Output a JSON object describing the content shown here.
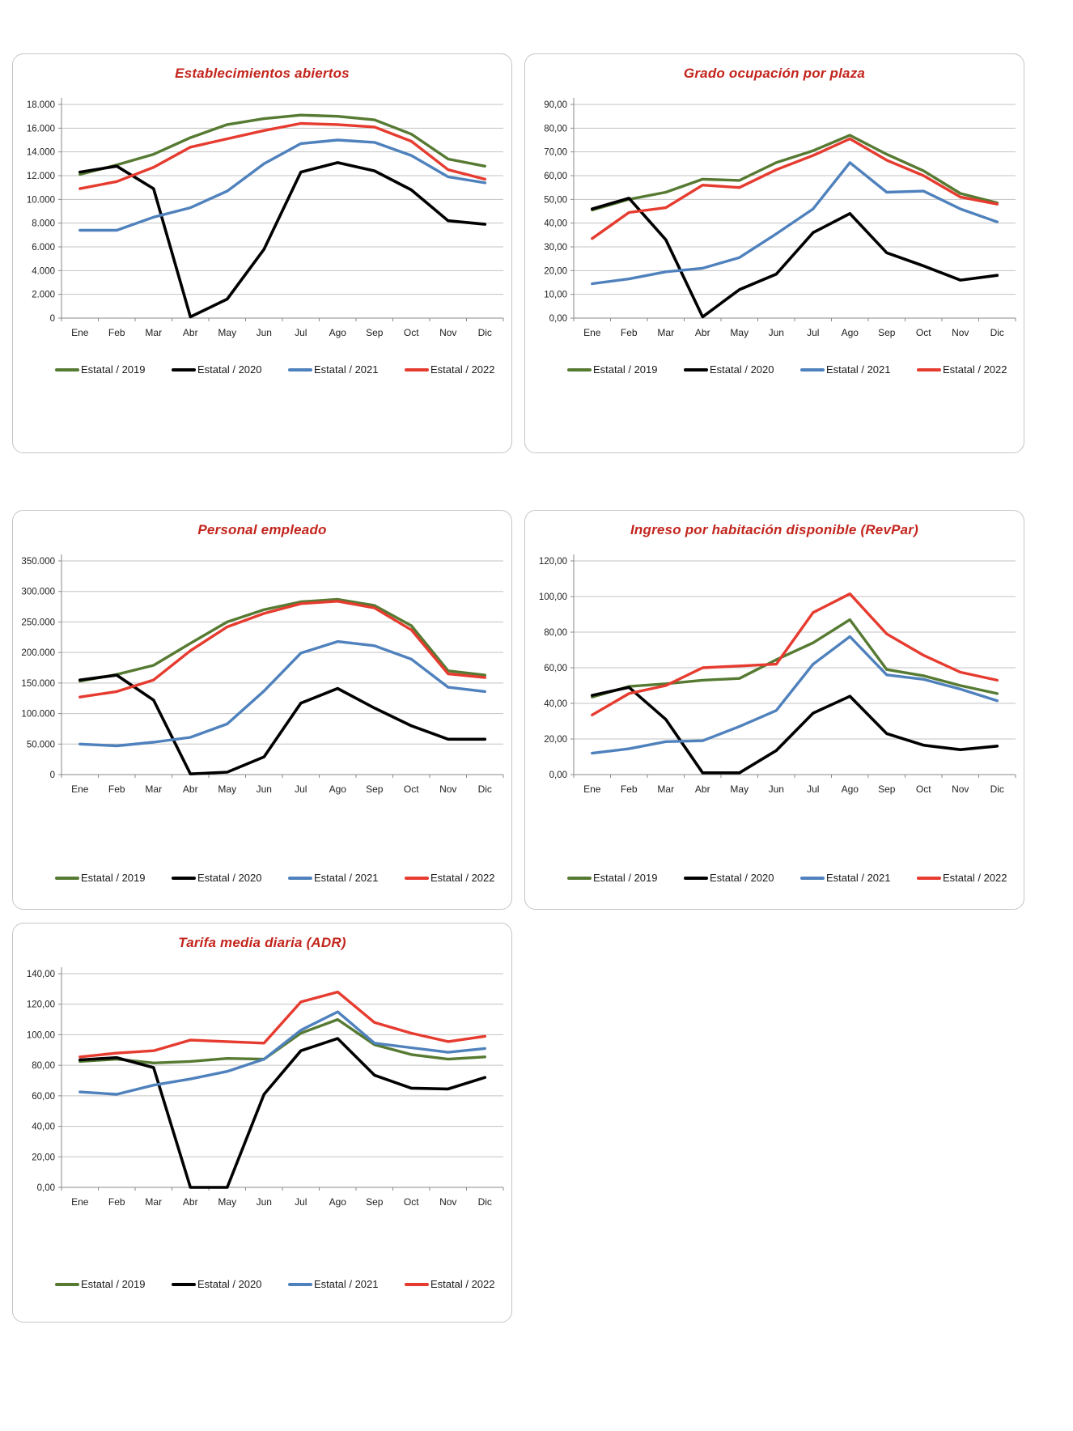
{
  "palette": {
    "title_red": "#c3251d",
    "gridline": "#c3c3c3",
    "axis_line": "#8a8a8a",
    "tick_text": "#1f1f1f",
    "panel_border": "#c6c6c6",
    "series_2019_green": "#567a32",
    "series_2020_black": "#000000",
    "series_2021_blue": "#4f81bd",
    "series_2022_red": "#e63b2f"
  },
  "chart_data": [
    {
      "type": "line",
      "title": "Establecimientos abiertos",
      "ylim": [
        0,
        18000
      ],
      "y_step": 2000,
      "grid": true,
      "legend_position": "bottom",
      "y_ticks": [
        "18.000",
        "16.000",
        "14.000",
        "12.000",
        "10.000",
        "8.000",
        "6.000",
        "4.000",
        "2.000",
        "0"
      ],
      "categories": [
        "Ene",
        "Feb",
        "Mar",
        "Abr",
        "May",
        "Jun",
        "Jul",
        "Ago",
        "Sep",
        "Oct",
        "Nov",
        "Dic"
      ],
      "series": [
        {
          "name": "Estatal / 2019",
          "color_key": "series_2019_green",
          "values": [
            12100,
            12900,
            13800,
            15200,
            16300,
            16800,
            17100,
            17000,
            16700,
            15500,
            13400,
            12800
          ]
        },
        {
          "name": "Estatal / 2020",
          "color_key": "series_2020_black",
          "values": [
            12300,
            12800,
            10900,
            100,
            1600,
            5800,
            12300,
            13100,
            12400,
            10800,
            8200,
            7900
          ]
        },
        {
          "name": "Estatal / 2021",
          "color_key": "series_2021_blue",
          "values": [
            7400,
            7400,
            8500,
            9300,
            10700,
            13000,
            14700,
            15000,
            14800,
            13700,
            11900,
            11400
          ]
        },
        {
          "name": "Estatal / 2022",
          "color_key": "series_2022_red",
          "values": [
            10900,
            11500,
            12700,
            14400,
            15100,
            15800,
            16400,
            16300,
            16100,
            14900,
            12500,
            11700
          ]
        }
      ]
    },
    {
      "type": "line",
      "title": "Grado ocupación por plaza",
      "ylim": [
        0,
        90
      ],
      "y_step": 10,
      "grid": true,
      "legend_position": "bottom",
      "y_ticks": [
        "90,00",
        "80,00",
        "70,00",
        "60,00",
        "50,00",
        "40,00",
        "30,00",
        "20,00",
        "10,00",
        "0,00"
      ],
      "categories": [
        "Ene",
        "Feb",
        "Mar",
        "Abr",
        "May",
        "Jun",
        "Jul",
        "Ago",
        "Sep",
        "Oct",
        "Nov",
        "Dic"
      ],
      "series": [
        {
          "name": "Estatal / 2019",
          "color_key": "series_2019_green",
          "values": [
            45.5,
            50,
            53,
            58.5,
            58,
            65.5,
            70.5,
            77,
            69,
            62,
            52.5,
            48.5
          ]
        },
        {
          "name": "Estatal / 2020",
          "color_key": "series_2020_black",
          "values": [
            46,
            50.5,
            33,
            0.5,
            12,
            18.5,
            36,
            44,
            27.5,
            22,
            16,
            18
          ]
        },
        {
          "name": "Estatal / 2021",
          "color_key": "series_2021_blue",
          "values": [
            14.5,
            16.5,
            19.5,
            21,
            25.5,
            35.5,
            46,
            65.5,
            53,
            53.5,
            46,
            40.5
          ]
        },
        {
          "name": "Estatal / 2022",
          "color_key": "series_2022_red",
          "values": [
            33.5,
            44.5,
            46.5,
            56,
            55,
            62.5,
            68.5,
            75.5,
            66.5,
            60,
            51,
            48
          ]
        }
      ]
    },
    {
      "type": "line",
      "title": "Personal empleado",
      "ylim": [
        0,
        350000
      ],
      "y_step": 50000,
      "grid": true,
      "legend_position": "bottom",
      "y_ticks": [
        "350.000",
        "300.000",
        "250.000",
        "200.000",
        "150.000",
        "100.000",
        "50.000",
        "0"
      ],
      "categories": [
        "Ene",
        "Feb",
        "Mar",
        "Abr",
        "May",
        "Jun",
        "Jul",
        "Ago",
        "Sep",
        "Oct",
        "Nov",
        "Dic"
      ],
      "series": [
        {
          "name": "Estatal / 2019",
          "color_key": "series_2019_green",
          "values": [
            153000,
            164000,
            179000,
            215000,
            250000,
            270000,
            283000,
            287000,
            277000,
            244000,
            170000,
            163000
          ]
        },
        {
          "name": "Estatal / 2020",
          "color_key": "series_2020_black",
          "values": [
            155000,
            163000,
            122000,
            1000,
            4000,
            29000,
            117000,
            141000,
            109000,
            80000,
            58000,
            58000
          ]
        },
        {
          "name": "Estatal / 2021",
          "color_key": "series_2021_blue",
          "values": [
            50000,
            47000,
            53000,
            61000,
            83000,
            137000,
            199000,
            218000,
            211000,
            189000,
            143000,
            136000
          ]
        },
        {
          "name": "Estatal / 2022",
          "color_key": "series_2022_red",
          "values": [
            127000,
            136000,
            155000,
            203000,
            242000,
            264000,
            280000,
            284000,
            273000,
            237000,
            165000,
            159000
          ]
        }
      ]
    },
    {
      "type": "line",
      "title": "Ingreso por habitación disponible (RevPar)",
      "ylim": [
        0,
        120
      ],
      "y_step": 20,
      "grid": true,
      "legend_position": "bottom",
      "y_ticks": [
        "120,00",
        "100,00",
        "80,00",
        "60,00",
        "40,00",
        "20,00",
        "0,00"
      ],
      "categories": [
        "Ene",
        "Feb",
        "Mar",
        "Abr",
        "May",
        "Jun",
        "Jul",
        "Ago",
        "Sep",
        "Oct",
        "Nov",
        "Dic"
      ],
      "series": [
        {
          "name": "Estatal / 2019",
          "color_key": "series_2019_green",
          "values": [
            43.5,
            49.5,
            51,
            53,
            54,
            64.5,
            74,
            87,
            59,
            55.5,
            50,
            45.5
          ]
        },
        {
          "name": "Estatal / 2020",
          "color_key": "series_2020_black",
          "values": [
            44.5,
            49,
            31,
            1,
            1,
            13.5,
            34.5,
            44,
            23,
            16.5,
            14,
            16
          ]
        },
        {
          "name": "Estatal / 2021",
          "color_key": "series_2021_blue",
          "values": [
            12,
            14.5,
            18.5,
            19,
            27,
            36,
            62,
            77.5,
            56,
            53.5,
            48,
            41.5
          ]
        },
        {
          "name": "Estatal / 2022",
          "color_key": "series_2022_red",
          "values": [
            33.5,
            45.5,
            50,
            60,
            61,
            62,
            91,
            101.5,
            79,
            67,
            57.5,
            53
          ]
        }
      ]
    },
    {
      "type": "line",
      "title": "Tarifa media diaria (ADR)",
      "ylim": [
        0,
        140
      ],
      "y_step": 20,
      "grid": true,
      "legend_position": "bottom",
      "y_ticks": [
        "140,00",
        "120,00",
        "100,00",
        "80,00",
        "60,00",
        "40,00",
        "20,00",
        "0,00"
      ],
      "categories": [
        "Ene",
        "Feb",
        "Mar",
        "Abr",
        "May",
        "Jun",
        "Jul",
        "Ago",
        "Sep",
        "Oct",
        "Nov",
        "Dic"
      ],
      "series": [
        {
          "name": "Estatal / 2019",
          "color_key": "series_2019_green",
          "values": [
            82.5,
            84,
            81.5,
            82.5,
            84.5,
            84,
            101,
            110,
            93.5,
            87,
            84,
            85.5
          ]
        },
        {
          "name": "Estatal / 2020",
          "color_key": "series_2020_black",
          "values": [
            83.5,
            85,
            78.5,
            0,
            0,
            61,
            89.5,
            97.5,
            73.5,
            65,
            64.5,
            72
          ]
        },
        {
          "name": "Estatal / 2021",
          "color_key": "series_2021_blue",
          "values": [
            62.5,
            61,
            67,
            71,
            76,
            84,
            103,
            115,
            94.5,
            91.5,
            88.5,
            91
          ]
        },
        {
          "name": "Estatal / 2022",
          "color_key": "series_2022_red",
          "values": [
            85.5,
            88,
            89.5,
            96.5,
            95.5,
            94.5,
            121.5,
            128,
            108,
            101,
            95.5,
            99
          ]
        }
      ]
    }
  ]
}
